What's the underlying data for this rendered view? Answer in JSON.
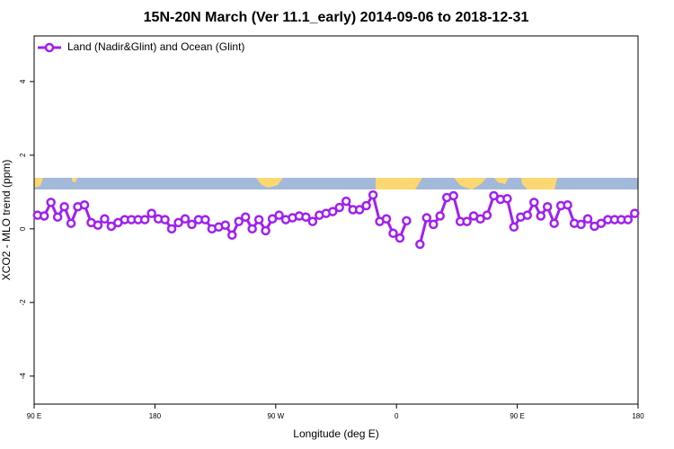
{
  "chart_data": {
    "type": "line",
    "title": "15N-20N March (Ver 11.1_early)   2014-09-06 to 2018-12-31",
    "x_label": "Longitude (deg E)",
    "y_label": "XCO2 - MLO trend (ppm)",
    "xlim": [
      90,
      540
    ],
    "ylim": [
      -4.76,
      5.24
    ],
    "xticks": [
      {
        "value": 90,
        "label": "90 E"
      },
      {
        "value": 180,
        "label": "180"
      },
      {
        "value": 270,
        "label": "90 W"
      },
      {
        "value": 360,
        "label": "0"
      },
      {
        "value": 450,
        "label": "90 E"
      },
      {
        "value": 540,
        "label": "180"
      }
    ],
    "yticks": [
      -4,
      -2,
      0,
      2,
      4
    ],
    "legend": "top-left",
    "x": [
      92.5,
      97.5,
      102.5,
      107.5,
      112.5,
      117.5,
      122.5,
      127.5,
      132.5,
      137.5,
      142.5,
      147.5,
      152.5,
      157.5,
      162.5,
      167.5,
      172.5,
      177.5,
      182.5,
      187.5,
      192.5,
      197.5,
      202.5,
      207.5,
      212.5,
      217.5,
      222.5,
      227.5,
      232.5,
      237.5,
      242.5,
      247.5,
      252.5,
      257.5,
      262.5,
      267.5,
      272.5,
      277.5,
      282.5,
      287.5,
      292.5,
      297.5,
      302.5,
      307.5,
      312.5,
      317.5,
      322.5,
      327.5,
      332.5,
      337.5,
      342.5,
      347.5,
      352.5,
      357.5,
      362.5,
      367.5,
      372.5,
      377.5,
      382.5,
      387.5,
      392.5,
      397.5,
      402.5,
      407.5,
      412.5,
      417.5,
      422.5,
      427.5,
      432.5,
      437.5,
      442.5,
      447.5,
      452.5,
      457.5,
      462.5,
      467.5,
      472.5,
      477.5,
      482.5,
      487.5,
      492.5,
      497.5,
      502.5,
      507.5,
      512.5,
      517.5,
      522.5,
      527.5,
      532.5,
      537.5
    ],
    "series": [
      {
        "name": "Land (Nadir&Glint) and Ocean (Glint)",
        "color": "#a020f0",
        "values": [
          0.37,
          0.35,
          0.72,
          0.32,
          0.6,
          0.15,
          0.6,
          0.65,
          0.17,
          0.1,
          0.27,
          0.07,
          0.17,
          0.25,
          0.25,
          0.25,
          0.25,
          0.42,
          0.27,
          0.25,
          0,
          0.17,
          0.27,
          0.12,
          0.25,
          0.25,
          0,
          0.05,
          0.1,
          -0.17,
          0.2,
          0.32,
          0,
          0.25,
          -0.05,
          0.27,
          0.37,
          0.25,
          0.3,
          0.35,
          0.32,
          0.2,
          0.37,
          0.42,
          0.47,
          0.58,
          0.75,
          0.52,
          0.52,
          0.63,
          0.92,
          0.2,
          0.27,
          -0.12,
          -0.25,
          0.22,
          null,
          -0.42,
          0.3,
          0.12,
          0.35,
          0.85,
          0.9,
          0.2,
          0.2,
          0.35,
          0.27,
          0.37,
          0.9,
          0.8,
          0.82,
          0.05,
          0.32,
          0.37,
          0.72,
          0.35,
          0.6,
          0.15,
          0.63,
          0.65,
          0.15,
          0.12,
          0.27,
          0.07,
          0.15,
          0.25,
          0.25,
          0.25,
          0.25,
          0.42
        ]
      }
    ]
  }
}
